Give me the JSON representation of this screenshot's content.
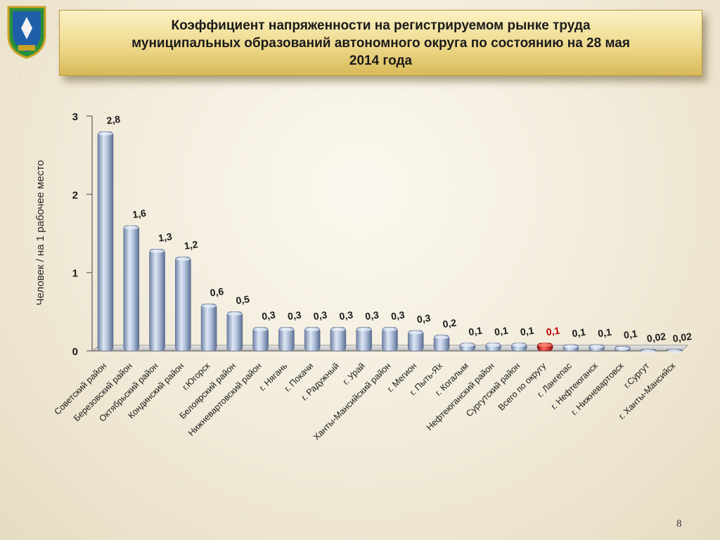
{
  "title": "Коэффициент напряженности на регистрируемом рынке труда муниципальных образований автономного округа по состоянию на 28 мая 2014 года",
  "page_number": "8",
  "colors": {
    "bar": "#a9b9d4",
    "highlight_bar": "#d8201e",
    "highlight_label": "#c00000"
  },
  "chart_data": {
    "type": "bar",
    "title": "Коэффициент напряженности на регистрируемом рынке труда муниципальных образований автономного округа по состоянию на 28 мая 2014 года",
    "xlabel": "",
    "ylabel": "Человек / на 1 рабочее место",
    "ylim": [
      0,
      3
    ],
    "yticks": [
      "0",
      "1",
      "2",
      "3"
    ],
    "grid": false,
    "highlight_index": 17,
    "categories": [
      "Советский район",
      "Березовский район",
      "Октябрьский район",
      "Кондинский район",
      "г.Югорск",
      "Белоярский район",
      "Нижневартовский район",
      "г. Нягань",
      "г. Покачи",
      "г. Радужный",
      "г. Урай",
      "Ханты-Мансийский район",
      "г. Мегион",
      "г. Пыть-Ях",
      "г. Когалым",
      "Нефтеюганский район",
      "Сургутский район",
      "Всего по округу",
      "г. Лангепас",
      "г. Нефтеюганск",
      "г. Нижневартовск",
      "г.Сургут",
      "г. Ханты-Мансийск"
    ],
    "values": [
      2.8,
      1.6,
      1.3,
      1.2,
      0.6,
      0.5,
      0.3,
      0.3,
      0.3,
      0.3,
      0.3,
      0.3,
      0.26,
      0.2,
      0.1,
      0.1,
      0.1,
      0.1,
      0.08,
      0.08,
      0.06,
      0.02,
      0.02
    ],
    "labels": [
      "2,8",
      "1,6",
      "1,3",
      "1,2",
      "0,6",
      "0,5",
      "0,3",
      "0,3",
      "0,3",
      "0,3",
      "0,3",
      "0,3",
      "0,3",
      "0,2",
      "0,1",
      "0,1",
      "0,1",
      "0,1",
      "0,1",
      "0,1",
      "0,1",
      "0,02",
      "0,02"
    ]
  }
}
